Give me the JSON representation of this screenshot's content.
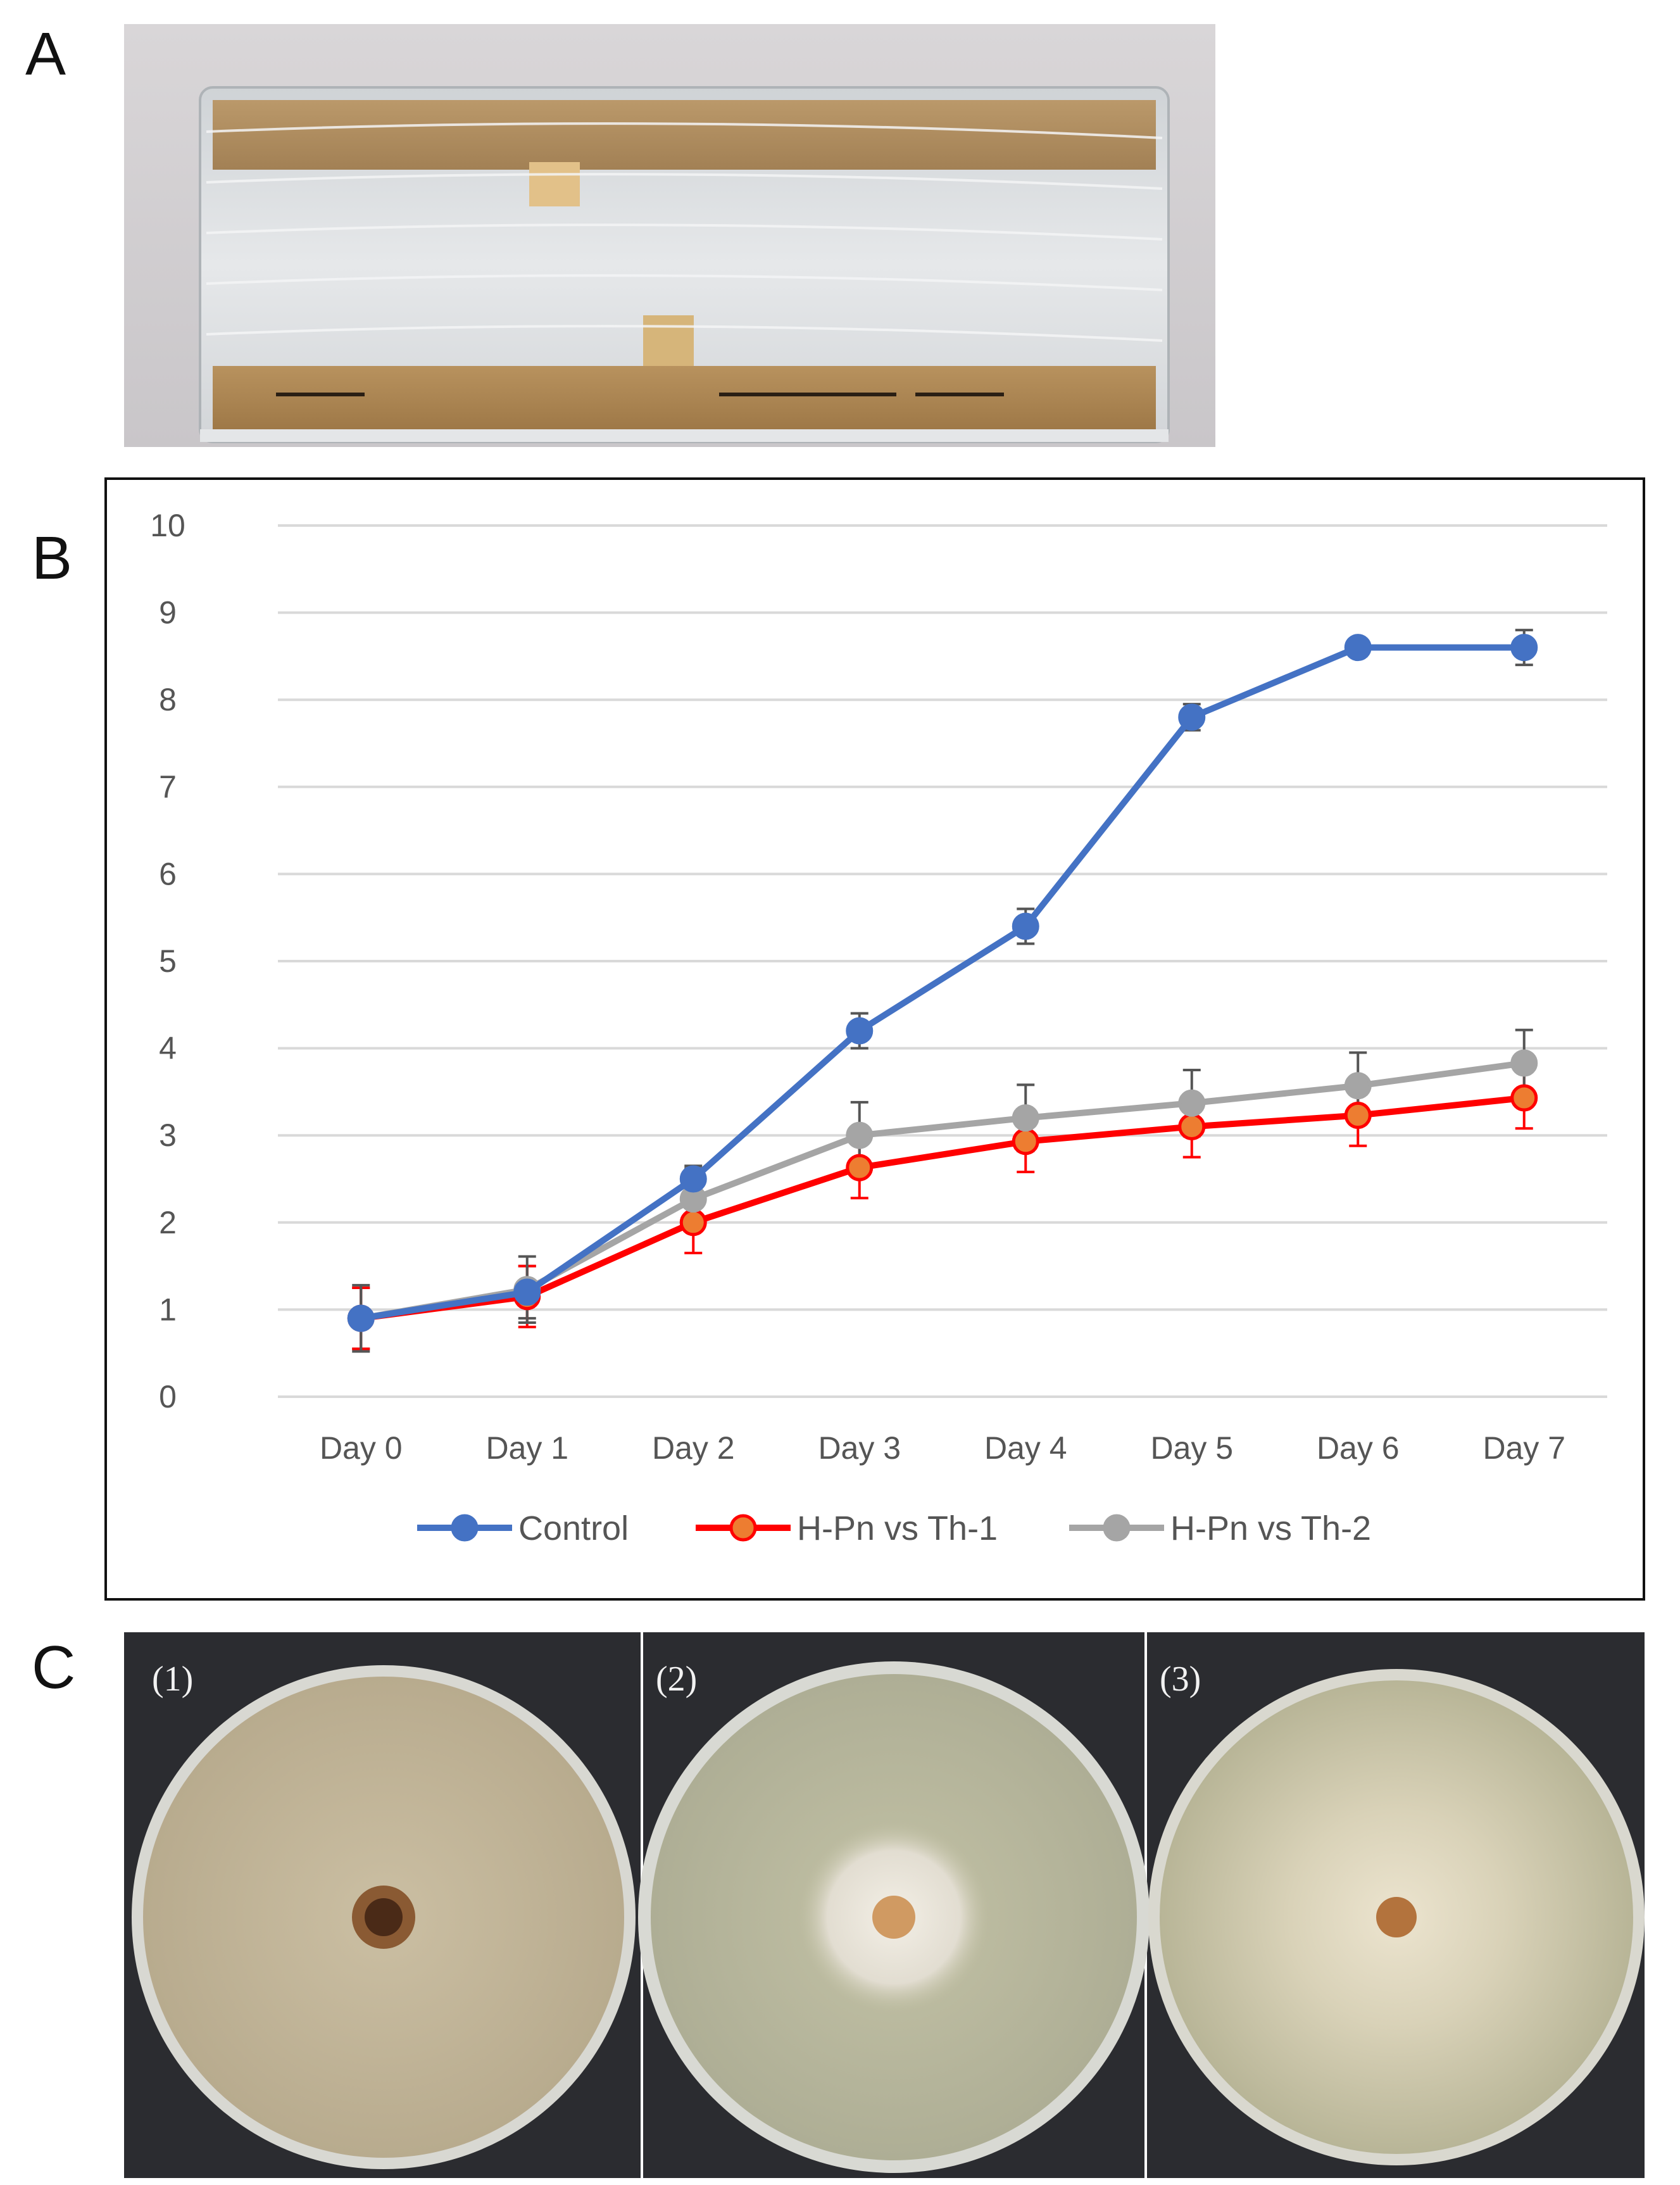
{
  "panels": {
    "a_label": "A",
    "b_label": "B",
    "c_label": "C"
  },
  "plates": [
    {
      "label": "(1)",
      "description": "Control plate"
    },
    {
      "label": "(2)",
      "description": "H-Pn vs Th-1 plate"
    },
    {
      "label": "(3)",
      "description": "H-Pn vs Th-2 plate"
    }
  ],
  "colors": {
    "control": "#4472C4",
    "th1_line": "#FF0000",
    "th1_marker": "#ED7D31",
    "th2": "#A5A5A5",
    "grid": "#D9D9D9",
    "errorbar": "#555555"
  },
  "chart_data": {
    "type": "line",
    "title": "",
    "xlabel": "",
    "ylabel": "",
    "categories": [
      "Day 0",
      "Day 1",
      "Day 2",
      "Day 3",
      "Day 4",
      "Day 5",
      "Day 6",
      "Day 7"
    ],
    "ylim": [
      0,
      10
    ],
    "yticks": [
      0,
      1,
      2,
      3,
      4,
      5,
      6,
      7,
      8,
      9,
      10
    ],
    "grid": true,
    "legend_position": "bottom",
    "series": [
      {
        "name": "Control",
        "values": [
          0.9,
          1.2,
          2.5,
          4.2,
          5.4,
          7.8,
          8.6,
          8.6
        ],
        "errors": [
          0.35,
          0.3,
          0.15,
          0.2,
          0.2,
          0.15,
          0.05,
          0.2
        ]
      },
      {
        "name": "H-Pn vs Th-1",
        "values": [
          0.9,
          1.15,
          2.0,
          2.63,
          2.93,
          3.1,
          3.23,
          3.43
        ],
        "errors": [
          0.35,
          0.35,
          0.35,
          0.35,
          0.35,
          0.35,
          0.35,
          0.35
        ]
      },
      {
        "name": "H-Pn vs Th-2",
        "values": [
          0.9,
          1.23,
          2.27,
          3.0,
          3.2,
          3.37,
          3.57,
          3.83
        ],
        "errors": [
          0.38,
          0.38,
          0.35,
          0.38,
          0.38,
          0.38,
          0.38,
          0.38
        ]
      }
    ]
  }
}
